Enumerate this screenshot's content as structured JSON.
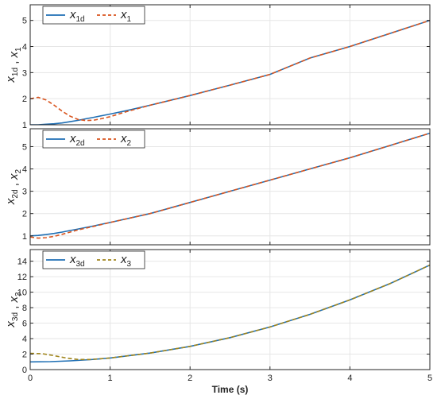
{
  "chart_data": {
    "type": "line",
    "xlabel": "Time (s)",
    "xlim": [
      0,
      5
    ],
    "xticks": [
      0,
      1,
      2,
      3,
      4,
      5
    ],
    "grid": true,
    "panels": [
      {
        "ylabel": {
          "a": "x",
          "a_sub": "1d",
          "b": "x",
          "b_sub": "1"
        },
        "ylim": [
          1,
          5.6
        ],
        "yticks": [
          1,
          2,
          3,
          4,
          5
        ],
        "legend": "top-left",
        "series": [
          {
            "name": "x",
            "sub": "1d",
            "style": "solid",
            "color": "#1f6fb4",
            "x": [
              0,
              0.1,
              0.2,
              0.3,
              0.4,
              0.5,
              0.6,
              0.7,
              0.8,
              0.9,
              1.0,
              1.2,
              1.5,
              2.0,
              2.5,
              3.0,
              3.5,
              4.0,
              4.5,
              5.0
            ],
            "y": [
              1.0,
              1.0,
              1.02,
              1.04,
              1.07,
              1.12,
              1.17,
              1.23,
              1.29,
              1.35,
              1.41,
              1.54,
              1.75,
              2.12,
              2.52,
              2.93,
              3.56,
              4.0,
              4.5,
              5.0
            ]
          },
          {
            "name": "x",
            "sub": "1",
            "style": "dashed",
            "color": "#d9541e",
            "x": [
              0,
              0.1,
              0.2,
              0.3,
              0.4,
              0.5,
              0.6,
              0.7,
              0.8,
              0.9,
              1.0,
              1.2,
              1.5,
              2.0,
              2.5,
              3.0,
              3.5,
              4.0,
              4.5,
              5.0
            ],
            "y": [
              2.0,
              2.05,
              1.95,
              1.75,
              1.52,
              1.33,
              1.2,
              1.16,
              1.18,
              1.24,
              1.31,
              1.5,
              1.75,
              2.12,
              2.52,
              2.93,
              3.56,
              4.0,
              4.5,
              5.0
            ]
          }
        ]
      },
      {
        "ylabel": {
          "a": "x",
          "a_sub": "2d",
          "b": "x",
          "b_sub": "2"
        },
        "ylim": [
          0.6,
          5.8
        ],
        "yticks": [
          1,
          2,
          3,
          4,
          5
        ],
        "legend": "top-left",
        "series": [
          {
            "name": "x",
            "sub": "2d",
            "style": "solid",
            "color": "#1f6fb4",
            "x": [
              0,
              0.1,
              0.2,
              0.3,
              0.4,
              0.5,
              0.6,
              0.8,
              1.0,
              1.5,
              2.0,
              2.5,
              3.0,
              3.5,
              4.0,
              4.5,
              5.0
            ],
            "y": [
              1.0,
              1.02,
              1.06,
              1.11,
              1.17,
              1.24,
              1.31,
              1.45,
              1.6,
              2.0,
              2.5,
              3.0,
              3.5,
              4.0,
              4.5,
              5.05,
              5.6
            ]
          },
          {
            "name": "x",
            "sub": "2",
            "style": "dashed",
            "color": "#d9541e",
            "x": [
              0,
              0.1,
              0.2,
              0.3,
              0.4,
              0.5,
              0.6,
              0.8,
              1.0,
              1.5,
              2.0,
              2.5,
              3.0,
              3.5,
              4.0,
              4.5,
              5.0
            ],
            "y": [
              0.95,
              0.9,
              0.92,
              0.98,
              1.07,
              1.17,
              1.27,
              1.43,
              1.6,
              2.0,
              2.5,
              3.0,
              3.5,
              4.0,
              4.5,
              5.05,
              5.6
            ]
          }
        ]
      },
      {
        "ylabel": {
          "a": "x",
          "a_sub": "3d",
          "b": "x",
          "b_sub": "3"
        },
        "ylim": [
          0,
          15.5
        ],
        "yticks": [
          0,
          2,
          4,
          6,
          8,
          10,
          12,
          14
        ],
        "legend": "top-left",
        "series": [
          {
            "name": "x",
            "sub": "3d",
            "style": "solid",
            "color": "#1f6fb4",
            "x": [
              0,
              0.25,
              0.5,
              0.75,
              1.0,
              1.5,
              2.0,
              2.5,
              3.0,
              3.5,
              4.0,
              4.5,
              5.0
            ],
            "y": [
              1.0,
              1.03,
              1.13,
              1.28,
              1.5,
              2.13,
              3.0,
              4.13,
              5.5,
              7.13,
              9.0,
              11.1,
              13.5
            ]
          },
          {
            "name": "x",
            "sub": "3",
            "style": "dashed",
            "color": "#a0851c",
            "x": [
              0,
              0.15,
              0.3,
              0.45,
              0.6,
              0.75,
              1.0,
              1.5,
              2.0,
              2.5,
              3.0,
              3.5,
              4.0,
              4.5,
              5.0
            ],
            "y": [
              2.1,
              2.05,
              1.8,
              1.5,
              1.3,
              1.3,
              1.5,
              2.13,
              3.0,
              4.13,
              5.5,
              7.13,
              9.0,
              11.1,
              13.5
            ]
          }
        ]
      }
    ]
  }
}
